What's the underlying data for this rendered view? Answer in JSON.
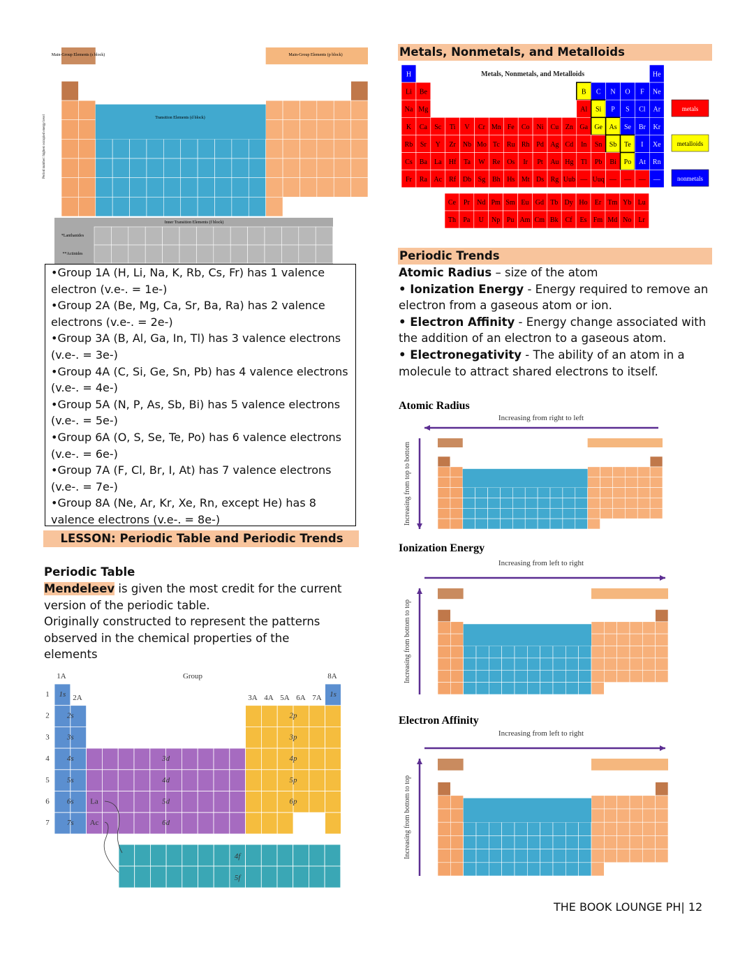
{
  "top_table": {
    "s_block": "Main-Group Elements (s block)",
    "p_block": "Main-Group Elements (p block)",
    "d_block": "Transition Elements (d block)",
    "f_block": "Inner Transition Elements (f block)",
    "lanthanides": "*Lanthanides",
    "actinides": "**Actinides",
    "axis_label": "Period number: highest occupied energy level"
  },
  "valence_box": [
    "•Group 1A (H, Li, Na, K, Rb, Cs, Fr) has 1 valence electron (v.e-. = 1e-)",
    "•Group 2A (Be, Mg, Ca, Sr, Ba, Ra) has 2 valence electrons (v.e-. = 2e-)",
    "•Group 3A (B, Al, Ga, In, Tl) has 3 valence electrons (v.e-. = 3e-)",
    "•Group 4A (C, Si, Ge, Sn, Pb) has 4 valence electrons (v.e-. = 4e-)",
    "•Group 5A (N, P, As, Sb, Bi) has 5 valence electrons (v.e-. = 5e-)",
    "•Group 6A (O, S, Se, Te, Po) has 6 valence electrons (v.e-. = 6e-)",
    "•Group 7A (F, Cl, Br, I, At) has 7 valence electrons (v.e-. = 7e-)",
    "•Group 8A (Ne, Ar, Kr, Xe, Rn, except He) has 8 valence electrons (v.e-. = 8e-)"
  ],
  "lesson_banner": "LESSON: Periodic Table and Periodic Trends",
  "periodic_table_section": {
    "heading": "Periodic Table",
    "highlight": "Mendeleev",
    "text_1": " is given the most credit for the current version of the periodic table.",
    "text_2": "Originally constructed to represent the patterns observed in the chemical properties of the elements"
  },
  "orbital_diagram": {
    "group_label": "Group",
    "column_labels": [
      "1A",
      "2A",
      "3A",
      "4A",
      "5A",
      "6A",
      "7A",
      "8A"
    ],
    "periods": [
      "1",
      "2",
      "3",
      "4",
      "5",
      "6",
      "7"
    ],
    "s_labels": [
      "1s",
      "2s",
      "3s",
      "4s",
      "5s",
      "6s",
      "7s"
    ],
    "he_label": "1s",
    "p_labels": [
      "2p",
      "3p",
      "4p",
      "5p",
      "6p"
    ],
    "d_labels": [
      "3d",
      "4d",
      "5d",
      "6d"
    ],
    "f_labels": [
      "4f",
      "5f"
    ],
    "la": "La",
    "ac": "Ac"
  },
  "metals_heading": "Metals, Nonmetals, and Metalloids",
  "metals_table": {
    "title": "Metals, Nonmetals, and Metalloids",
    "colors": {
      "metal": "#ff0000",
      "metalloid": "#ffff00",
      "nonmetal": "#0000ff"
    },
    "rows": [
      [
        [
          "H",
          "nonmetal"
        ],
        null,
        null,
        null,
        null,
        null,
        null,
        null,
        null,
        null,
        null,
        null,
        null,
        null,
        null,
        null,
        null,
        [
          "He",
          "nonmetal"
        ]
      ],
      [
        [
          "Li",
          "metal"
        ],
        [
          "Be",
          "metal"
        ],
        null,
        null,
        null,
        null,
        null,
        null,
        null,
        null,
        null,
        null,
        [
          "B",
          "metalloid"
        ],
        [
          "C",
          "nonmetal"
        ],
        [
          "N",
          "nonmetal"
        ],
        [
          "O",
          "nonmetal"
        ],
        [
          "F",
          "nonmetal"
        ],
        [
          "Ne",
          "nonmetal"
        ]
      ],
      [
        [
          "Na",
          "metal"
        ],
        [
          "Mg",
          "metal"
        ],
        null,
        null,
        null,
        null,
        null,
        null,
        null,
        null,
        null,
        null,
        [
          "Al",
          "metal"
        ],
        [
          "Si",
          "metalloid"
        ],
        [
          "P",
          "nonmetal"
        ],
        [
          "S",
          "nonmetal"
        ],
        [
          "Cl",
          "nonmetal"
        ],
        [
          "Ar",
          "nonmetal"
        ]
      ],
      [
        [
          "K",
          "metal"
        ],
        [
          "Ca",
          "metal"
        ],
        [
          "Sc",
          "metal"
        ],
        [
          "Ti",
          "metal"
        ],
        [
          "V",
          "metal"
        ],
        [
          "Cr",
          "metal"
        ],
        [
          "Mn",
          "metal"
        ],
        [
          "Fe",
          "metal"
        ],
        [
          "Co",
          "metal"
        ],
        [
          "Ni",
          "metal"
        ],
        [
          "Cu",
          "metal"
        ],
        [
          "Zn",
          "metal"
        ],
        [
          "Ga",
          "metal"
        ],
        [
          "Ge",
          "metalloid"
        ],
        [
          "As",
          "metalloid"
        ],
        [
          "Se",
          "nonmetal"
        ],
        [
          "Br",
          "nonmetal"
        ],
        [
          "Kr",
          "nonmetal"
        ]
      ],
      [
        [
          "Rb",
          "metal"
        ],
        [
          "Sr",
          "metal"
        ],
        [
          "Y",
          "metal"
        ],
        [
          "Zr",
          "metal"
        ],
        [
          "Nb",
          "metal"
        ],
        [
          "Mo",
          "metal"
        ],
        [
          "Tc",
          "metal"
        ],
        [
          "Ru",
          "metal"
        ],
        [
          "Rh",
          "metal"
        ],
        [
          "Pd",
          "metal"
        ],
        [
          "Ag",
          "metal"
        ],
        [
          "Cd",
          "metal"
        ],
        [
          "In",
          "metal"
        ],
        [
          "Sn",
          "metal"
        ],
        [
          "Sb",
          "metalloid"
        ],
        [
          "Te",
          "metalloid"
        ],
        [
          "I",
          "nonmetal"
        ],
        [
          "Xe",
          "nonmetal"
        ]
      ],
      [
        [
          "Cs",
          "metal"
        ],
        [
          "Ba",
          "metal"
        ],
        [
          "La",
          "metal"
        ],
        [
          "Hf",
          "metal"
        ],
        [
          "Ta",
          "metal"
        ],
        [
          "W",
          "metal"
        ],
        [
          "Re",
          "metal"
        ],
        [
          "Os",
          "metal"
        ],
        [
          "Ir",
          "metal"
        ],
        [
          "Pt",
          "metal"
        ],
        [
          "Au",
          "metal"
        ],
        [
          "Hg",
          "metal"
        ],
        [
          "Tl",
          "metal"
        ],
        [
          "Pb",
          "metal"
        ],
        [
          "Bi",
          "metal"
        ],
        [
          "Po",
          "metalloid"
        ],
        [
          "At",
          "nonmetal"
        ],
        [
          "Rn",
          "nonmetal"
        ]
      ],
      [
        [
          "Fr",
          "metal"
        ],
        [
          "Ra",
          "metal"
        ],
        [
          "Ac",
          "metal"
        ],
        [
          "Rf",
          "metal"
        ],
        [
          "Db",
          "metal"
        ],
        [
          "Sg",
          "metal"
        ],
        [
          "Bh",
          "metal"
        ],
        [
          "Hs",
          "metal"
        ],
        [
          "Mt",
          "metal"
        ],
        [
          "Ds",
          "metal"
        ],
        [
          "Rg",
          "metal"
        ],
        [
          "Uub",
          "metal"
        ],
        [
          "—",
          "metal"
        ],
        [
          "Uuq",
          "metal"
        ],
        [
          "—",
          "metal"
        ],
        [
          "—",
          "metal"
        ],
        [
          "—",
          "metal"
        ],
        [
          "—",
          "nonmetal"
        ]
      ]
    ],
    "f_rows": [
      [
        "Ce",
        "Pr",
        "Nd",
        "Pm",
        "Sm",
        "Eu",
        "Gd",
        "Tb",
        "Dy",
        "Ho",
        "Er",
        "Tm",
        "Yb",
        "Lu"
      ],
      [
        "Th",
        "Pa",
        "U",
        "Np",
        "Pu",
        "Am",
        "Cm",
        "Bk",
        "Cf",
        "Es",
        "Fm",
        "Md",
        "No",
        "Lr"
      ]
    ],
    "legend": [
      {
        "label": "metals",
        "kind": "metal"
      },
      {
        "label": "metalloids",
        "kind": "metalloid"
      },
      {
        "label": "nonmetals",
        "kind": "nonmetal"
      }
    ]
  },
  "periodic_trends": {
    "heading": "Periodic Trends",
    "items": [
      {
        "term": "Atomic Radius",
        "text": " – size of the atom"
      },
      {
        "term": "• Ionization Energy",
        "text": " - Energy required to remove an electron from a gaseous atom or ion."
      },
      {
        "term": "• Electron Affinity",
        "text": " - Energy change associated with the addition of an electron to a gaseous atom."
      },
      {
        "term": "• Electronegativity",
        "text": " - The ability of an atom in a molecule to attract shared electrons to itself."
      }
    ]
  },
  "trends": [
    {
      "title": "Atomic Radius",
      "horizontal": "Increasing from right to left",
      "vertical": "Increasing from top to bottom",
      "h_dir": "left",
      "v_dir": "down"
    },
    {
      "title": "Ionization Energy",
      "horizontal": "Increasing from left to right",
      "vertical": "Increasing from bottom to top",
      "h_dir": "right",
      "v_dir": "up"
    },
    {
      "title": "Electron Affinity",
      "horizontal": "Increasing from left to right",
      "vertical": "Increasing from bottom to top",
      "h_dir": "right",
      "v_dir": "up"
    }
  ],
  "footer": "THE BOOK LOUNGE PH| 12"
}
